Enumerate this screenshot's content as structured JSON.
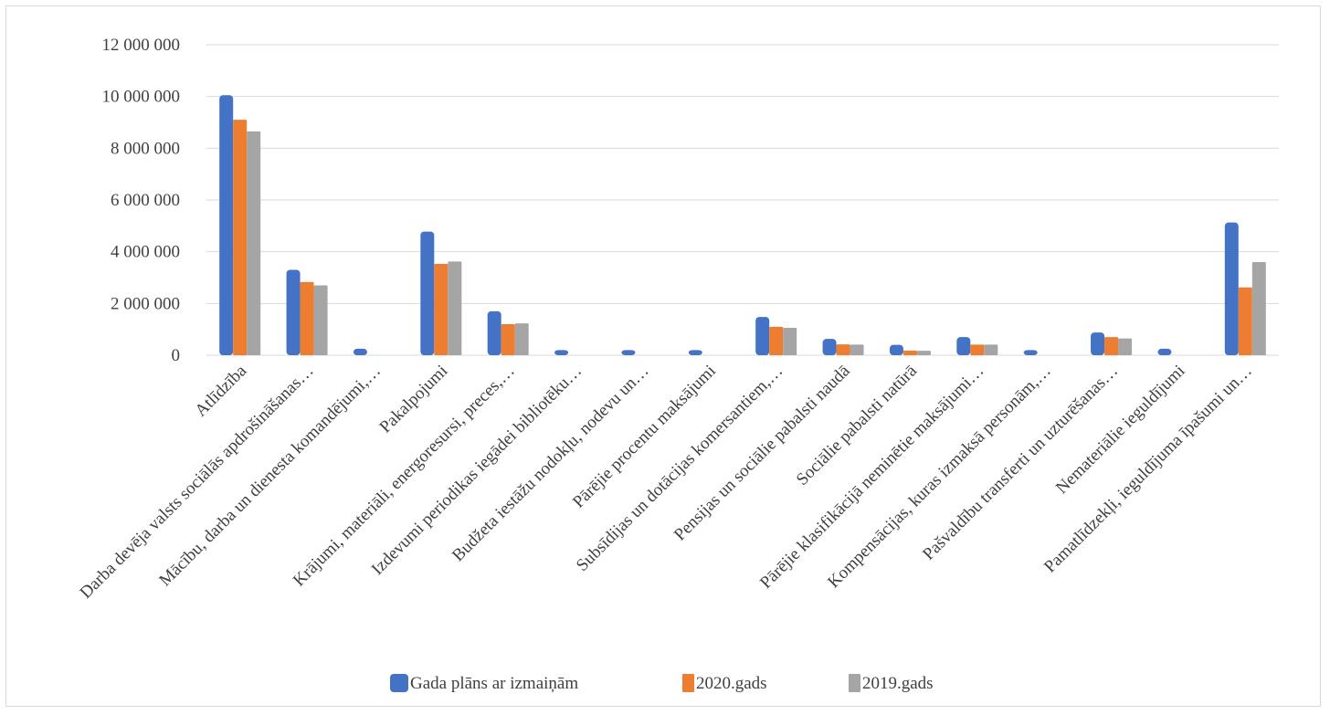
{
  "chart_data": {
    "type": "bar",
    "categories": [
      "Atlīdzība",
      "Darba devēja valsts sociālās apdrošināšanas…",
      "Mācību, darba un dienesta komandējumi,…",
      "Pakalpojumi",
      "Krājumi, materiāli, energoresursi, preces,…",
      "Izdevumi periodikas iegādei bibliotēku…",
      "Budžeta iestāžu nodokļu, nodevu un…",
      "Pārējie procentu maksājumi",
      "Subsīdijas un dotācijas komersantiem,…",
      "Pensijas un sociālie pabalsti naudā",
      "Sociālie pabalsti natūrā",
      "Pārējie klasifikācijā neminētie maksājumi…",
      "Kompensācijas, kuras izmaksā personām,…",
      "Pašvaldību transferti un uzturēšanas…",
      "Nemateriālie ieguldījumi",
      "Pamatlīdzekļi, ieguldījuma īpašumi un…"
    ],
    "series": [
      {
        "name": "Gada plāns ar izmaiņām",
        "color": "#4472c4",
        "values": [
          10050000,
          3300000,
          250000,
          4780000,
          1700000,
          200000,
          200000,
          200000,
          1480000,
          630000,
          400000,
          700000,
          200000,
          880000,
          250000,
          5130000
        ]
      },
      {
        "name": "2020.gads",
        "color": "#ed7d31",
        "values": [
          9100000,
          2830000,
          0,
          3530000,
          1200000,
          0,
          0,
          0,
          1100000,
          420000,
          180000,
          410000,
          0,
          700000,
          0,
          2620000
        ]
      },
      {
        "name": "2019.gads",
        "color": "#a5a5a5",
        "values": [
          8650000,
          2700000,
          0,
          3620000,
          1230000,
          0,
          0,
          0,
          1060000,
          410000,
          170000,
          410000,
          0,
          650000,
          0,
          3600000
        ]
      }
    ],
    "ylim": [
      0,
      12000000
    ],
    "yticks": [
      0,
      2000000,
      4000000,
      6000000,
      8000000,
      10000000,
      12000000
    ],
    "ytick_labels": [
      "0",
      "2 000 000",
      "4 000 000",
      "6 000 000",
      "8 000 000",
      "10 000 000",
      "12 000 000"
    ],
    "grid": true,
    "legend_position": "bottom"
  }
}
